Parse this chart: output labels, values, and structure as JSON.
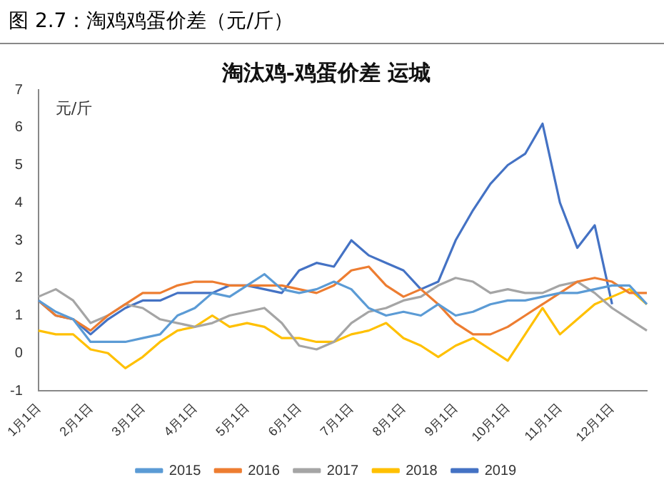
{
  "chart_data": {
    "type": "line",
    "title": "图 2.7：淘鸡鸡蛋价差（元/斤）",
    "subtitle": "淘汰鸡-鸡蛋价差 运城",
    "ylabel": "元/斤",
    "categories": [
      "1月1日",
      null,
      null,
      "2月1日",
      null,
      null,
      "3月1日",
      null,
      null,
      "4月1日",
      null,
      null,
      "5月1日",
      null,
      null,
      "6月1日",
      null,
      null,
      "7月1日",
      null,
      null,
      "8月1日",
      null,
      null,
      "9月1日",
      null,
      null,
      "10月1日",
      null,
      null,
      "11月1日",
      null,
      null,
      "12月1日",
      null,
      null
    ],
    "series": [
      {
        "name": "2015",
        "color": "#5b9bd5",
        "values": [
          1.4,
          1.1,
          0.9,
          0.3,
          0.3,
          0.3,
          0.4,
          0.5,
          1.0,
          1.2,
          1.6,
          1.5,
          1.8,
          2.1,
          1.7,
          1.6,
          1.7,
          1.9,
          1.7,
          1.2,
          1.0,
          1.1,
          1.0,
          1.3,
          1.0,
          1.1,
          1.3,
          1.4,
          1.4,
          1.5,
          1.6,
          1.6,
          1.7,
          1.8,
          1.8,
          1.3
        ]
      },
      {
        "name": "2016",
        "color": "#ed7d31",
        "values": [
          1.4,
          1.0,
          0.9,
          0.6,
          1.0,
          1.3,
          1.6,
          1.6,
          1.8,
          1.9,
          1.9,
          1.8,
          1.8,
          1.8,
          1.8,
          1.7,
          1.6,
          1.8,
          2.2,
          2.3,
          1.8,
          1.5,
          1.7,
          1.3,
          0.8,
          0.5,
          0.5,
          0.7,
          1.0,
          1.3,
          1.6,
          1.9,
          2.0,
          1.9,
          1.6,
          1.6
        ]
      },
      {
        "name": "2017",
        "color": "#a5a5a5",
        "values": [
          1.5,
          1.7,
          1.4,
          0.8,
          1.0,
          1.3,
          1.2,
          0.9,
          0.8,
          0.7,
          0.8,
          1.0,
          1.1,
          1.2,
          0.8,
          0.2,
          0.1,
          0.3,
          0.8,
          1.1,
          1.2,
          1.4,
          1.5,
          1.8,
          2.0,
          1.9,
          1.6,
          1.7,
          1.6,
          1.6,
          1.8,
          1.9,
          1.6,
          1.2,
          0.9,
          0.6
        ]
      },
      {
        "name": "2018",
        "color": "#ffc000",
        "values": [
          0.6,
          0.5,
          0.5,
          0.1,
          0.0,
          -0.4,
          -0.1,
          0.3,
          0.6,
          0.7,
          1.0,
          0.7,
          0.8,
          0.7,
          0.4,
          0.4,
          0.3,
          0.3,
          0.5,
          0.6,
          0.8,
          0.4,
          0.2,
          -0.1,
          0.2,
          0.4,
          0.1,
          -0.2,
          0.5,
          1.2,
          0.5,
          0.9,
          1.3,
          1.5,
          1.7,
          1.3
        ]
      },
      {
        "name": "2019",
        "color": "#4472c4",
        "values": [
          1.4,
          1.0,
          0.9,
          0.5,
          0.9,
          1.2,
          1.4,
          1.4,
          1.6,
          1.6,
          1.6,
          1.8,
          1.8,
          1.7,
          1.6,
          2.2,
          2.4,
          2.3,
          3.0,
          2.6,
          2.4,
          2.2,
          1.7,
          1.9,
          3.0,
          3.8,
          4.5,
          5.0,
          5.3,
          6.1,
          4.0,
          2.8,
          3.4,
          1.3,
          null,
          null
        ]
      }
    ],
    "ylim": [
      -1,
      7
    ],
    "yticks": [
      -1,
      0,
      1,
      2,
      3,
      4,
      5,
      6,
      7
    ],
    "grid": false,
    "legend": "bottom",
    "marker": "none",
    "line_style": "solid"
  }
}
